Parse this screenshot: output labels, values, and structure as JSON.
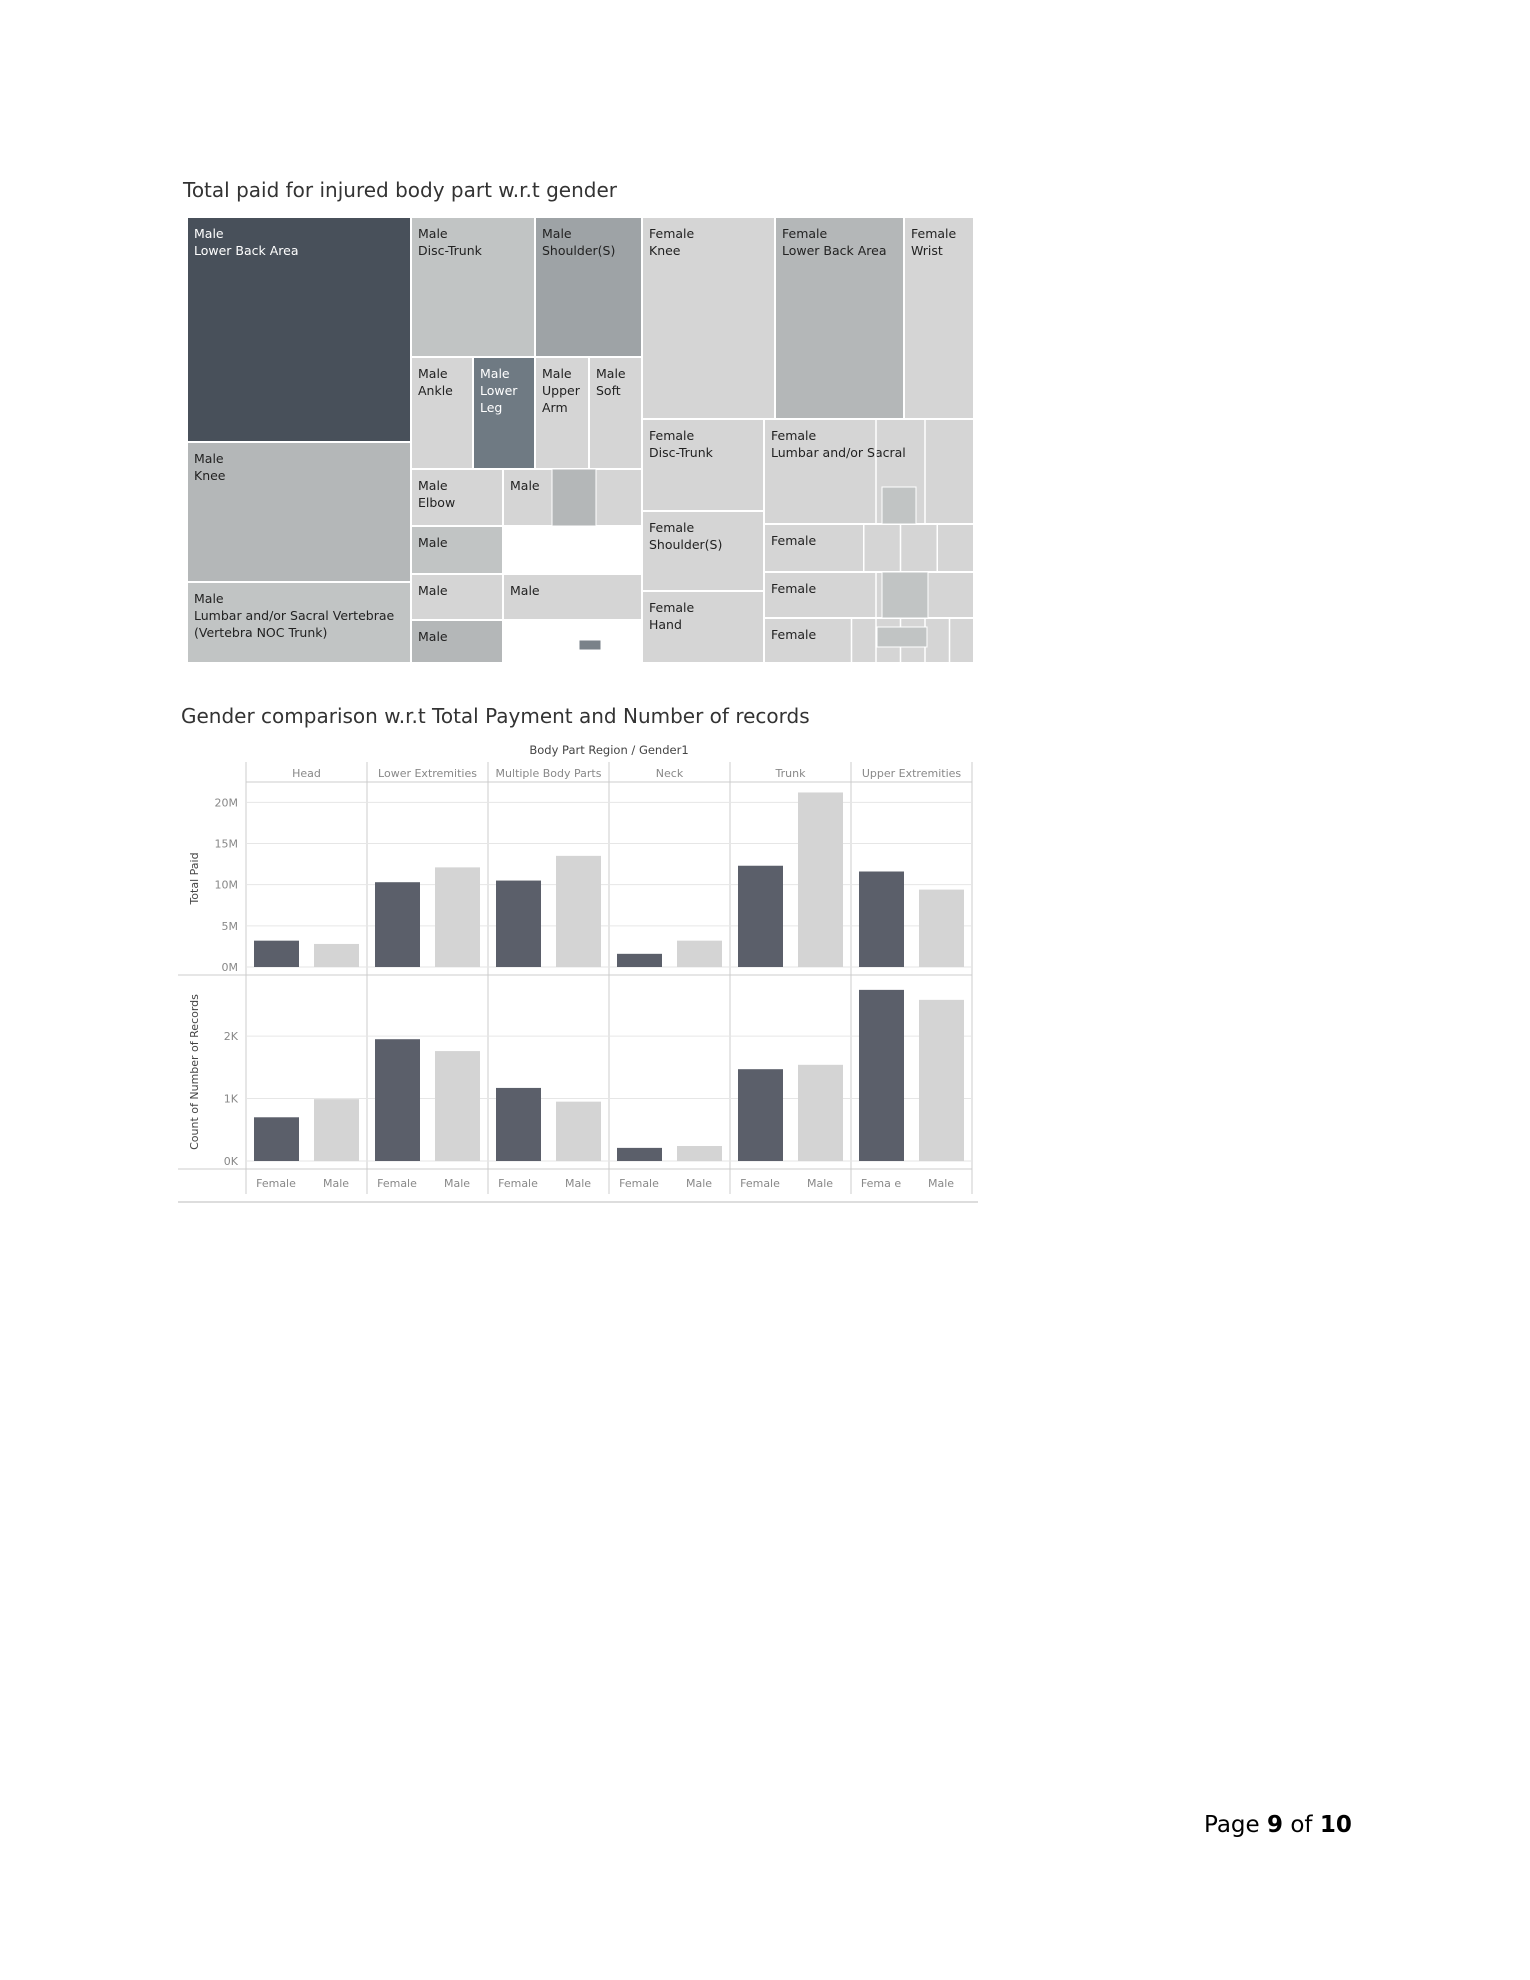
{
  "page": {
    "page_label_prefix": "Page",
    "page_current": "9",
    "page_of": "of",
    "page_total": "10"
  },
  "chart_data": [
    {
      "type": "treemap",
      "title": "Total paid for injured body part w.r.t gender",
      "colors": {
        "darkest": "#48505a",
        "dark": "#6f7a83",
        "mid": "#9ea3a6",
        "light": "#b4b7b8",
        "lighter": "#c1c4c4",
        "lightest": "#d5d5d5"
      },
      "tiles": [
        {
          "gender": "Male",
          "part": "Lower Back Area",
          "color": "#48505a",
          "text": "#ffffff"
        },
        {
          "gender": "Male",
          "part": "Knee",
          "color": "#b4b7b8",
          "text": "#222222"
        },
        {
          "gender": "Male",
          "part": "Lumbar and/or Sacral Vertebrae (Vertebra NOC Trunk)",
          "color": "#c1c4c4",
          "text": "#222222"
        },
        {
          "gender": "Male",
          "part": "Disc-Trunk",
          "color": "#c1c4c4",
          "text": "#222222"
        },
        {
          "gender": "Male",
          "part": "Shoulder(S)",
          "color": "#9ea3a6",
          "text": "#222222"
        },
        {
          "gender": "Male",
          "part": "Ankle",
          "color": "#d5d5d5",
          "text": "#222222"
        },
        {
          "gender": "Male",
          "part": "Lower Leg",
          "color": "#6f7a83",
          "text": "#ffffff"
        },
        {
          "gender": "Male",
          "part": "Upper Arm",
          "color": "#d5d5d5",
          "text": "#222222"
        },
        {
          "gender": "Male",
          "part": "Soft",
          "color": "#d5d5d5",
          "text": "#222222"
        },
        {
          "gender": "Male",
          "part": "Elbow",
          "color": "#d5d5d5",
          "text": "#222222"
        },
        {
          "gender": "Male",
          "part": "",
          "color": "#d5d5d5",
          "text": "#222222"
        },
        {
          "gender": "Male",
          "part": "",
          "color": "#c1c4c4",
          "text": "#222222"
        },
        {
          "gender": "Male",
          "part": "",
          "color": "#d5d5d5",
          "text": "#222222"
        },
        {
          "gender": "Male",
          "part": "",
          "color": "#d5d5d5",
          "text": "#222222"
        },
        {
          "gender": "Male",
          "part": "",
          "color": "#b4b7b8",
          "text": "#222222"
        },
        {
          "gender": "Female",
          "part": "Knee",
          "color": "#d5d5d5",
          "text": "#222222"
        },
        {
          "gender": "Female",
          "part": "Lower Back Area",
          "color": "#b4b7b8",
          "text": "#222222"
        },
        {
          "gender": "Female",
          "part": "Wrist",
          "color": "#d5d5d5",
          "text": "#222222"
        },
        {
          "gender": "Female",
          "part": "Disc-Trunk",
          "color": "#d5d5d5",
          "text": "#222222"
        },
        {
          "gender": "Female",
          "part": "Lumbar and/or Sacral",
          "color": "#d5d5d5",
          "text": "#222222"
        },
        {
          "gender": "Female",
          "part": "Shoulder(S)",
          "color": "#d5d5d5",
          "text": "#222222"
        },
        {
          "gender": "Female",
          "part": "",
          "color": "#d5d5d5",
          "text": "#222222"
        },
        {
          "gender": "Female",
          "part": "Hand",
          "color": "#d5d5d5",
          "text": "#222222"
        },
        {
          "gender": "Female",
          "part": "",
          "color": "#d5d5d5",
          "text": "#222222"
        },
        {
          "gender": "Female",
          "part": "",
          "color": "#d5d5d5",
          "text": "#222222"
        }
      ]
    },
    {
      "type": "bar",
      "title": "Gender comparison w.r.t Total Payment and Number of records",
      "header": "Body Part Region / Gender1",
      "regions": [
        "Head",
        "Lower Extremities",
        "Multiple Body Parts",
        "Neck",
        "Trunk",
        "Upper Extremities"
      ],
      "x_labels": [
        [
          "Female",
          "Male"
        ],
        [
          "Female",
          "Male"
        ],
        [
          "Female",
          "Male"
        ],
        [
          "Female",
          "Male"
        ],
        [
          "Female",
          "Male"
        ],
        [
          "Fema e",
          "Male"
        ]
      ],
      "colors": {
        "Female": "#5b5f6a",
        "Male": "#d4d4d4"
      },
      "panels": [
        {
          "ylabel": "Total Paid",
          "ylim": [
            0,
            21500000
          ],
          "ticks": [
            {
              "value": 0,
              "label": "0M"
            },
            {
              "value": 5000000,
              "label": "5M"
            },
            {
              "value": 10000000,
              "label": "10M"
            },
            {
              "value": 15000000,
              "label": "15M"
            },
            {
              "value": 20000000,
              "label": "20M"
            }
          ],
          "female": [
            3200000,
            10300000,
            10500000,
            1600000,
            12300000,
            11600000
          ],
          "male": [
            2800000,
            12100000,
            13500000,
            3200000,
            21200000,
            9400000
          ]
        },
        {
          "ylabel": "Count of Number of Records",
          "ylim": [
            0,
            2850
          ],
          "ticks": [
            {
              "value": 0,
              "label": "0K"
            },
            {
              "value": 1000,
              "label": "1K"
            },
            {
              "value": 2000,
              "label": "2K"
            }
          ],
          "female": [
            700,
            1950,
            1170,
            210,
            1470,
            2740
          ],
          "male": [
            990,
            1760,
            950,
            240,
            1540,
            2580
          ]
        }
      ]
    }
  ]
}
